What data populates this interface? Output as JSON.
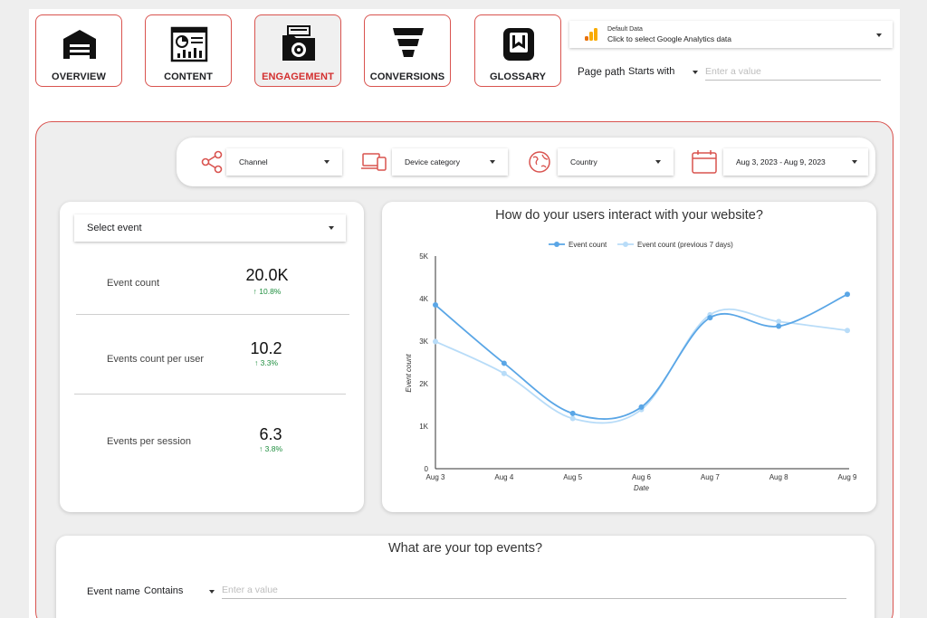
{
  "nav": {
    "items": [
      {
        "label": "OVERVIEW",
        "icon": "warehouse-icon"
      },
      {
        "label": "CONTENT",
        "icon": "dashboard-screen-icon"
      },
      {
        "label": "ENGAGEMENT",
        "icon": "folder-gear-icon",
        "active": true
      },
      {
        "label": "CONVERSIONS",
        "icon": "funnel-icon"
      },
      {
        "label": "GLOSSARY",
        "icon": "book-w-icon"
      }
    ]
  },
  "data_source": {
    "title": "Default Data",
    "subtitle": "Click to select Google Analytics data"
  },
  "page_path": {
    "label": "Page path",
    "operator": "Starts with",
    "placeholder": "Enter a value"
  },
  "filters": {
    "channel": "Channel",
    "device": "Device category",
    "country": "Country",
    "date_range": "Aug 3, 2023 - Aug 9, 2023"
  },
  "metrics": {
    "select_event": "Select event",
    "rows": [
      {
        "label": "Event count",
        "value": "20.0K",
        "delta": "10.8%"
      },
      {
        "label": "Events count per user",
        "value": "10.2",
        "delta": "3.3%"
      },
      {
        "label": "Events per session",
        "value": "6.3",
        "delta": "3.8%"
      }
    ]
  },
  "chart_data": {
    "type": "line",
    "title": "How do your users interact with your website?",
    "xlabel": "Date",
    "ylabel": "Event count",
    "categories": [
      "Aug 3",
      "Aug 4",
      "Aug 5",
      "Aug 6",
      "Aug 7",
      "Aug 8",
      "Aug 9"
    ],
    "y_ticks": [
      "0",
      "1K",
      "2K",
      "3K",
      "4K",
      "5K"
    ],
    "ylim": [
      0,
      5000
    ],
    "legend_position": "top",
    "series": [
      {
        "name": "Event count",
        "values": [
          3850,
          2480,
          1300,
          1450,
          3550,
          3350,
          4100
        ],
        "color": "#5aa6e6"
      },
      {
        "name": "Event count (previous 7 days)",
        "values": [
          2990,
          2240,
          1180,
          1390,
          3620,
          3460,
          3250
        ],
        "color": "#b8dcf8"
      }
    ]
  },
  "top_events": {
    "title": "What are your top events?",
    "label": "Event name",
    "operator": "Contains",
    "placeholder": "Enter a value"
  },
  "colors": {
    "accent": "#d32f2f",
    "positive": "#1e8e3e",
    "series1": "#5aa6e6",
    "series2": "#b8dcf8"
  }
}
